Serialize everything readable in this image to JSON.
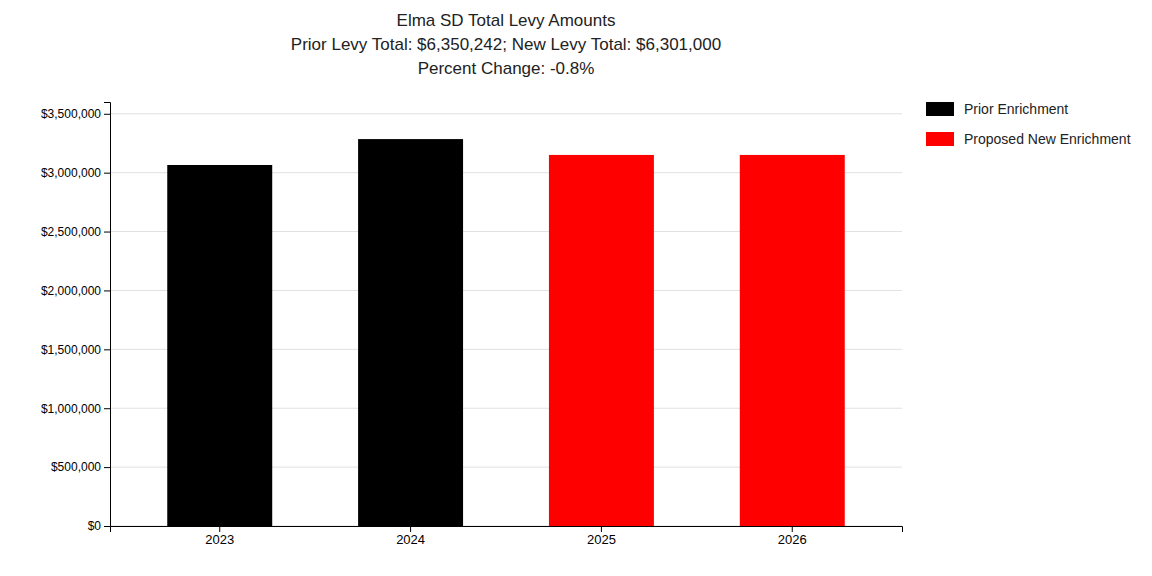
{
  "chart_data": {
    "type": "bar",
    "title": [
      "Elma SD Total Levy Amounts",
      "Prior Levy Total:  $6,350,242; New Levy Total: $6,301,000",
      "Percent Change: -0.8%"
    ],
    "categories": [
      "2023",
      "2024",
      "2025",
      "2026"
    ],
    "values": [
      3065121,
      3285121,
      3150500,
      3150500
    ],
    "colors": [
      "#000000",
      "#000000",
      "#ff0000",
      "#ff0000"
    ],
    "legend": "right",
    "legend_entries": [
      {
        "name": "Prior Enrichment",
        "color": "#000000"
      },
      {
        "name": "Proposed New Enrichment",
        "color": "#ff0000"
      }
    ],
    "ylim": [
      0,
      3600000
    ],
    "yticks": [
      {
        "value": 0,
        "label": "$0"
      },
      {
        "value": 500000,
        "label": "$500,000"
      },
      {
        "value": 1000000,
        "label": "$1,000,000"
      },
      {
        "value": 1500000,
        "label": "$1,500,000"
      },
      {
        "value": 2000000,
        "label": "$2,000,000"
      },
      {
        "value": 2500000,
        "label": "$2,500,000"
      },
      {
        "value": 3000000,
        "label": "$3,000,000"
      },
      {
        "value": 3500000,
        "label": "$3,500,000"
      }
    ],
    "grid": true
  }
}
